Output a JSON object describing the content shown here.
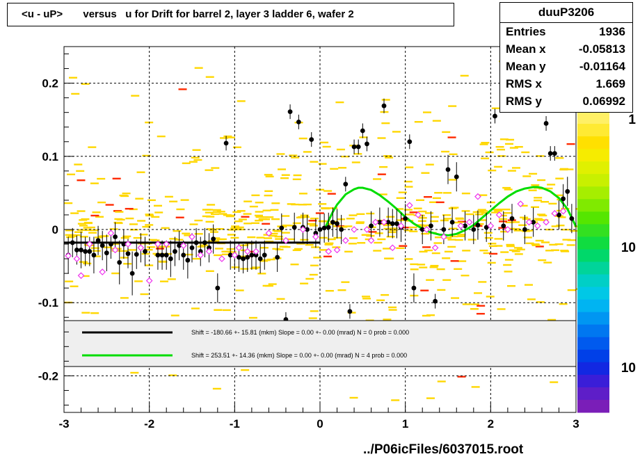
{
  "title": "<u - uP>       versus   u for Drift for barrel 2, layer 3 ladder 6, wafer 2",
  "stats": {
    "name": "duuP3206",
    "rows": [
      {
        "label": "Entries",
        "value": "1936"
      },
      {
        "label": "Mean x",
        "value": "-0.05813"
      },
      {
        "label": "Mean y",
        "value": "-0.01164"
      },
      {
        "label": "RMS x",
        "value": "1.669"
      },
      {
        "label": "RMS y",
        "value": "0.06992"
      }
    ]
  },
  "footer": "../P06icFiles/6037015.root",
  "legend": [
    {
      "text": "Shift =  -180.66 +- 15.81 (mkm) Slope =     0.00 +- 0.00 (mrad)  N = 0 prob = 0.000",
      "color": "#000000"
    },
    {
      "text": "Shift =   253.51 +- 14.36 (mkm) Slope =     0.00 +- 0.00 (mrad)  N = 4 prob = 0.000",
      "color": "#00dd00"
    }
  ],
  "colorbar": {
    "labels": [
      "1",
      "10",
      "10"
    ]
  },
  "colors": {
    "density_low": "#ffd700",
    "density_high": "#ff2a00",
    "profile_marker": "#000000",
    "mean_marker": "#ee33ee",
    "fit_black": "#000000",
    "fit_green": "#00dd00"
  },
  "chart_data": {
    "type": "scatter",
    "xlim": [
      -3,
      3
    ],
    "ylim": [
      -0.25,
      0.25
    ],
    "xticks": [
      "-3",
      "-2",
      "-1",
      "0",
      "1",
      "2",
      "3"
    ],
    "yticks": [
      "-0.2",
      "-0.1",
      "0",
      "0.1",
      "0.2"
    ],
    "grid": true,
    "black_fit": {
      "x": [
        -3,
        0
      ],
      "y": [
        -0.018,
        -0.018
      ]
    },
    "green_fit": {
      "x": [
        0.05,
        0.1,
        0.15,
        0.2,
        0.3,
        0.4,
        0.45,
        0.5,
        0.6,
        0.7,
        0.8,
        0.9,
        1.0,
        1.1,
        1.2,
        1.3,
        1.4,
        1.5,
        1.6,
        1.7,
        1.8,
        1.9,
        2.0,
        2.1,
        2.2,
        2.3,
        2.4,
        2.5,
        2.55,
        2.6,
        2.7,
        2.8,
        2.9,
        3.0
      ],
      "y": [
        0.0,
        0.012,
        0.024,
        0.034,
        0.048,
        0.055,
        0.057,
        0.057,
        0.054,
        0.047,
        0.038,
        0.028,
        0.017,
        0.008,
        0.001,
        -0.004,
        -0.007,
        -0.008,
        -0.006,
        -0.001,
        0.006,
        0.016,
        0.026,
        0.036,
        0.045,
        0.052,
        0.056,
        0.058,
        0.058,
        0.057,
        0.052,
        0.043,
        0.028,
        0.004
      ]
    },
    "profile_points": [
      {
        "x": -2.95,
        "y": -0.035,
        "e": 0.025
      },
      {
        "x": -2.9,
        "y": -0.018,
        "e": 0.02
      },
      {
        "x": -2.85,
        "y": -0.028,
        "e": 0.02
      },
      {
        "x": -2.8,
        "y": -0.028,
        "e": 0.025
      },
      {
        "x": -2.75,
        "y": -0.03,
        "e": 0.02
      },
      {
        "x": -2.7,
        "y": -0.03,
        "e": 0.02
      },
      {
        "x": -2.65,
        "y": -0.035,
        "e": 0.025
      },
      {
        "x": -2.6,
        "y": -0.015,
        "e": 0.02
      },
      {
        "x": -2.55,
        "y": -0.022,
        "e": 0.02
      },
      {
        "x": -2.5,
        "y": -0.032,
        "e": 0.025
      },
      {
        "x": -2.45,
        "y": -0.02,
        "e": 0.02
      },
      {
        "x": -2.4,
        "y": -0.01,
        "e": 0.02
      },
      {
        "x": -2.35,
        "y": -0.045,
        "e": 0.03
      },
      {
        "x": -2.3,
        "y": -0.02,
        "e": 0.02
      },
      {
        "x": -2.25,
        "y": -0.033,
        "e": 0.02
      },
      {
        "x": -2.2,
        "y": -0.06,
        "e": 0.03
      },
      {
        "x": -2.15,
        "y": -0.034,
        "e": 0.02
      },
      {
        "x": -2.1,
        "y": -0.025,
        "e": 0.02
      },
      {
        "x": -2.05,
        "y": -0.03,
        "e": 0.02
      },
      {
        "x": -1.9,
        "y": -0.035,
        "e": 0.02
      },
      {
        "x": -1.85,
        "y": -0.035,
        "e": 0.02
      },
      {
        "x": -1.8,
        "y": -0.035,
        "e": 0.02
      },
      {
        "x": -1.75,
        "y": -0.04,
        "e": 0.025
      },
      {
        "x": -1.7,
        "y": -0.03,
        "e": 0.02
      },
      {
        "x": -1.65,
        "y": -0.022,
        "e": 0.02
      },
      {
        "x": -1.6,
        "y": -0.035,
        "e": 0.02
      },
      {
        "x": -1.55,
        "y": -0.042,
        "e": 0.025
      },
      {
        "x": -1.5,
        "y": -0.025,
        "e": 0.02
      },
      {
        "x": -1.45,
        "y": -0.018,
        "e": 0.02
      },
      {
        "x": -1.4,
        "y": -0.03,
        "e": 0.02
      },
      {
        "x": -1.35,
        "y": -0.018,
        "e": 0.02
      },
      {
        "x": -1.3,
        "y": -0.025,
        "e": 0.02
      },
      {
        "x": -1.25,
        "y": -0.013,
        "e": 0.02
      },
      {
        "x": -1.2,
        "y": -0.08,
        "e": 0.02
      },
      {
        "x": -1.1,
        "y": 0.118,
        "e": 0.01
      },
      {
        "x": -1.05,
        "y": -0.035,
        "e": 0.02
      },
      {
        "x": -1.0,
        "y": -0.035,
        "e": 0.02
      },
      {
        "x": -0.95,
        "y": -0.038,
        "e": 0.02
      },
      {
        "x": -0.9,
        "y": -0.04,
        "e": 0.02
      },
      {
        "x": -0.85,
        "y": -0.038,
        "e": 0.02
      },
      {
        "x": -0.8,
        "y": -0.035,
        "e": 0.02
      },
      {
        "x": -0.75,
        "y": -0.035,
        "e": 0.02
      },
      {
        "x": -0.7,
        "y": -0.04,
        "e": 0.02
      },
      {
        "x": -0.65,
        "y": -0.035,
        "e": 0.02
      },
      {
        "x": -0.5,
        "y": -0.038,
        "e": 0.02
      },
      {
        "x": -0.45,
        "y": 0.002,
        "e": 0.02
      },
      {
        "x": -0.4,
        "y": -0.123,
        "e": 0.01
      },
      {
        "x": -0.35,
        "y": 0.161,
        "e": 0.01
      },
      {
        "x": -0.3,
        "y": 0.003,
        "e": 0.02
      },
      {
        "x": -0.25,
        "y": 0.147,
        "e": 0.01
      },
      {
        "x": -0.2,
        "y": 0.003,
        "e": 0.02
      },
      {
        "x": -0.15,
        "y": 0.0,
        "e": 0.02
      },
      {
        "x": -0.1,
        "y": 0.123,
        "e": 0.01
      },
      {
        "x": -0.05,
        "y": -0.005,
        "e": 0.02
      },
      {
        "x": 0.0,
        "y": 0.0,
        "e": 0.02
      },
      {
        "x": 0.05,
        "y": 0.002,
        "e": 0.02
      },
      {
        "x": 0.1,
        "y": 0.003,
        "e": 0.02
      },
      {
        "x": 0.15,
        "y": 0.01,
        "e": 0.02
      },
      {
        "x": 0.2,
        "y": 0.008,
        "e": 0.02
      },
      {
        "x": 0.25,
        "y": 0.0,
        "e": 0.02
      },
      {
        "x": 0.3,
        "y": 0.062,
        "e": 0.01
      },
      {
        "x": 0.35,
        "y": -0.112,
        "e": 0.01
      },
      {
        "x": 0.4,
        "y": 0.113,
        "e": 0.01
      },
      {
        "x": 0.45,
        "y": 0.113,
        "e": 0.01
      },
      {
        "x": 0.5,
        "y": 0.135,
        "e": 0.01
      },
      {
        "x": 0.55,
        "y": 0.117,
        "e": 0.01
      },
      {
        "x": 0.6,
        "y": 0.005,
        "e": 0.02
      },
      {
        "x": 0.7,
        "y": 0.01,
        "e": 0.02
      },
      {
        "x": 0.75,
        "y": 0.169,
        "e": 0.01
      },
      {
        "x": 0.8,
        "y": 0.01,
        "e": 0.02
      },
      {
        "x": 0.85,
        "y": 0.008,
        "e": 0.02
      },
      {
        "x": 0.9,
        "y": 0.008,
        "e": 0.02
      },
      {
        "x": 0.95,
        "y": 0.003,
        "e": 0.02
      },
      {
        "x": 1.0,
        "y": 0.015,
        "e": 0.02
      },
      {
        "x": 1.05,
        "y": 0.12,
        "e": 0.01
      },
      {
        "x": 1.1,
        "y": -0.08,
        "e": 0.02
      },
      {
        "x": 1.2,
        "y": 0.0,
        "e": 0.02
      },
      {
        "x": 1.3,
        "y": 0.005,
        "e": 0.02
      },
      {
        "x": 1.35,
        "y": -0.098,
        "e": 0.01
      },
      {
        "x": 1.45,
        "y": 0.0,
        "e": 0.02
      },
      {
        "x": 1.5,
        "y": 0.082,
        "e": 0.02
      },
      {
        "x": 1.55,
        "y": 0.01,
        "e": 0.02
      },
      {
        "x": 1.6,
        "y": 0.072,
        "e": 0.02
      },
      {
        "x": 1.7,
        "y": 0.005,
        "e": 0.02
      },
      {
        "x": 1.8,
        "y": 0.0,
        "e": 0.02
      },
      {
        "x": 1.85,
        "y": 0.006,
        "e": 0.02
      },
      {
        "x": 1.95,
        "y": 0.003,
        "e": 0.02
      },
      {
        "x": 2.05,
        "y": 0.155,
        "e": 0.01
      },
      {
        "x": 2.15,
        "y": 0.005,
        "e": 0.02
      },
      {
        "x": 2.25,
        "y": 0.015,
        "e": 0.02
      },
      {
        "x": 2.4,
        "y": 0.0,
        "e": 0.02
      },
      {
        "x": 2.5,
        "y": 0.01,
        "e": 0.02
      },
      {
        "x": 2.65,
        "y": 0.145,
        "e": 0.01
      },
      {
        "x": 2.7,
        "y": 0.104,
        "e": 0.01
      },
      {
        "x": 2.75,
        "y": 0.104,
        "e": 0.01
      },
      {
        "x": 2.8,
        "y": 0.02,
        "e": 0.02
      },
      {
        "x": 2.85,
        "y": 0.042,
        "e": 0.02
      },
      {
        "x": 2.9,
        "y": 0.052,
        "e": 0.02
      },
      {
        "x": 2.95,
        "y": 0.015,
        "e": 0.02
      }
    ],
    "mean_points": [
      {
        "x": -2.95,
        "y": -0.036
      },
      {
        "x": -2.85,
        "y": -0.04
      },
      {
        "x": -2.8,
        "y": -0.063
      },
      {
        "x": -2.7,
        "y": -0.02
      },
      {
        "x": -2.55,
        "y": -0.058
      },
      {
        "x": -2.45,
        "y": -0.005
      },
      {
        "x": -2.4,
        "y": -0.028
      },
      {
        "x": -2.25,
        "y": -0.02
      },
      {
        "x": -2.1,
        "y": -0.025
      },
      {
        "x": -2.0,
        "y": -0.07
      },
      {
        "x": -1.9,
        "y": -0.02
      },
      {
        "x": -1.8,
        "y": -0.02
      },
      {
        "x": -1.6,
        "y": -0.022
      },
      {
        "x": -1.5,
        "y": -0.01
      },
      {
        "x": -1.4,
        "y": -0.035
      },
      {
        "x": -1.3,
        "y": -0.03
      },
      {
        "x": -1.15,
        "y": -0.04
      },
      {
        "x": -1.0,
        "y": -0.035
      },
      {
        "x": -0.95,
        "y": -0.025
      },
      {
        "x": -0.85,
        "y": -0.03
      },
      {
        "x": -0.75,
        "y": -0.03
      },
      {
        "x": -0.6,
        "y": -0.005
      },
      {
        "x": -0.4,
        "y": -0.015
      },
      {
        "x": -0.2,
        "y": 0.0
      },
      {
        "x": -0.05,
        "y": -0.01
      },
      {
        "x": 0.1,
        "y": -0.03
      },
      {
        "x": 0.2,
        "y": -0.028
      },
      {
        "x": 0.3,
        "y": -0.015
      },
      {
        "x": 0.4,
        "y": 0.0
      },
      {
        "x": 0.55,
        "y": 0.0
      },
      {
        "x": 0.6,
        "y": -0.015
      },
      {
        "x": 0.65,
        "y": 0.01
      },
      {
        "x": 0.75,
        "y": 0.01
      },
      {
        "x": 0.85,
        "y": -0.025
      },
      {
        "x": 0.95,
        "y": 0.005
      },
      {
        "x": 1.05,
        "y": 0.033
      },
      {
        "x": 1.15,
        "y": 0.02
      },
      {
        "x": 1.25,
        "y": 0.0
      },
      {
        "x": 1.35,
        "y": -0.025
      },
      {
        "x": 1.45,
        "y": -0.01
      },
      {
        "x": 1.65,
        "y": 0.005
      },
      {
        "x": 1.75,
        "y": 0.01
      },
      {
        "x": 1.85,
        "y": 0.045
      },
      {
        "x": 2.0,
        "y": 0.005
      },
      {
        "x": 2.1,
        "y": 0.02
      },
      {
        "x": 2.2,
        "y": 0.0
      },
      {
        "x": 2.35,
        "y": 0.035
      },
      {
        "x": 2.45,
        "y": 0.01
      },
      {
        "x": 2.55,
        "y": 0.005
      },
      {
        "x": 2.65,
        "y": 0.01
      },
      {
        "x": 2.75,
        "y": 0.022
      },
      {
        "x": 2.85,
        "y": 0.025
      }
    ]
  }
}
